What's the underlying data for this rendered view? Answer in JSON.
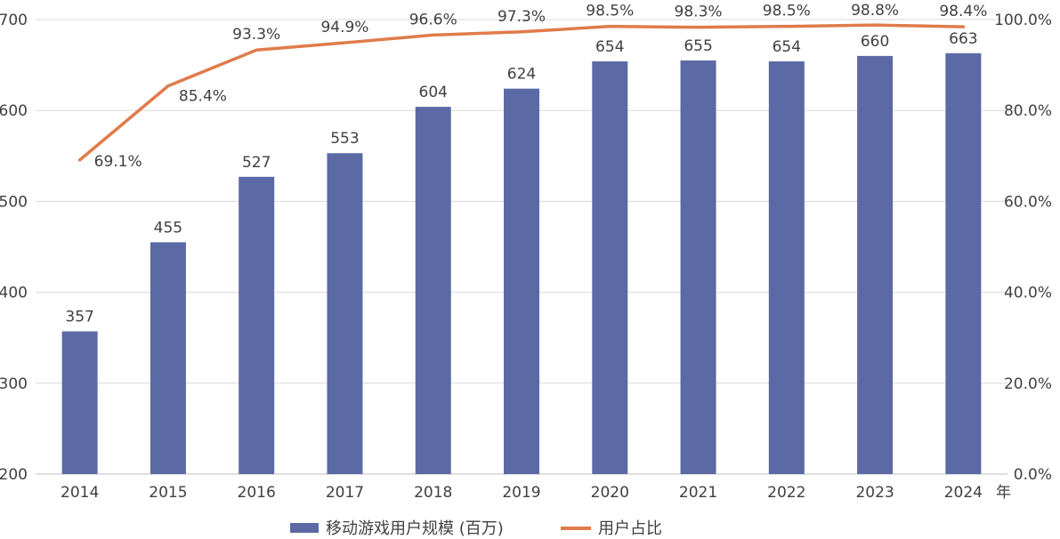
{
  "chart_data": {
    "type": "bar",
    "categories": [
      "2014",
      "2015",
      "2016",
      "2017",
      "2018",
      "2019",
      "2020",
      "2021",
      "2022",
      "2023",
      "2024"
    ],
    "x_unit": "年",
    "series": [
      {
        "name": "移动游戏用户规模 (百万)",
        "type": "bar",
        "axis": "left",
        "color": "#5b6aa5",
        "values": [
          357,
          455,
          527,
          553,
          604,
          624,
          654,
          655,
          654,
          660,
          663
        ],
        "labels": [
          "357",
          "455",
          "527",
          "553",
          "604",
          "624",
          "654",
          "655",
          "654",
          "660",
          "663"
        ]
      },
      {
        "name": "用户占比",
        "type": "line",
        "axis": "right",
        "color": "#e07b4a",
        "values": [
          69.1,
          85.4,
          93.3,
          94.9,
          96.6,
          97.3,
          98.5,
          98.3,
          98.5,
          98.8,
          98.4
        ],
        "labels": [
          "69.1%",
          "85.4%",
          "93.3%",
          "94.9%",
          "96.6%",
          "97.3%",
          "98.5%",
          "98.3%",
          "98.5%",
          "98.8%",
          "98.4%"
        ]
      }
    ],
    "y_left": {
      "min": 200,
      "max": 700,
      "ticks": [
        200,
        300,
        400,
        500,
        600,
        700
      ],
      "tick_labels": [
        "200",
        "300",
        "400",
        "500",
        "600",
        "700"
      ]
    },
    "y_right": {
      "min": 0,
      "max": 100,
      "ticks": [
        0,
        20,
        40,
        60,
        80,
        100
      ],
      "tick_labels": [
        "0.0%",
        "20.0%",
        "40.0%",
        "60.0%",
        "80.0%",
        "100.0%"
      ]
    },
    "grid": true,
    "legend_position": "bottom"
  }
}
